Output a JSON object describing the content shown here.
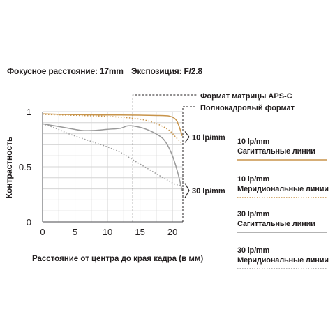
{
  "header": {
    "focal_length": "Фокусное расстояние: 17mm",
    "aperture": "Экспозиция: F/2.8"
  },
  "sensor_labels": {
    "aps_c": "Формат матрицы APS-C",
    "full_frame": "Полнокадровый формат"
  },
  "legend": [
    {
      "freq": "10 lp/mm",
      "type": "Сагиттальные линии",
      "color": "#c8944a",
      "style": "solid"
    },
    {
      "freq": "10 lp/mm",
      "type": "Меридиональные линии",
      "color": "#c8944a",
      "style": "dotted"
    },
    {
      "freq": "30 lp/mm",
      "type": "Сагиттальные линии",
      "color": "#9a9a9a",
      "style": "solid"
    },
    {
      "freq": "30 lp/mm",
      "type": "Меридиональные линии",
      "color": "#9a9a9a",
      "style": "dotted"
    }
  ],
  "chart_data": {
    "type": "line",
    "xlabel": "Расстояние от центра до края кадра (в мм)",
    "ylabel": "Контрастность",
    "xlim": [
      0,
      21.6
    ],
    "ylim": [
      0,
      1
    ],
    "x_ticks": [
      "0",
      "5",
      "10",
      "15",
      "20"
    ],
    "y_ticks": [
      "0",
      "0.5",
      "1"
    ],
    "grid": true,
    "markers": [
      {
        "label": "Формат матрицы APS-C",
        "x": 13.9
      },
      {
        "label": "Полнокадровый формат",
        "x": 21.6
      }
    ],
    "group_labels": [
      {
        "text": "10 lp/mm",
        "y_range": [
          0.72,
          0.82
        ]
      },
      {
        "text": "30 lp/mm",
        "y_range": [
          0.22,
          0.35
        ]
      }
    ],
    "series": [
      {
        "name": "10 lp/mm Сагиттальные линии",
        "color": "#c8944a",
        "dash": "solid",
        "points": [
          [
            0,
            0.98
          ],
          [
            3,
            0.975
          ],
          [
            6,
            0.972
          ],
          [
            9,
            0.97
          ],
          [
            12,
            0.97
          ],
          [
            15,
            0.968
          ],
          [
            18,
            0.965
          ],
          [
            19.5,
            0.96
          ],
          [
            20.5,
            0.93
          ],
          [
            21,
            0.87
          ],
          [
            21.5,
            0.78
          ]
        ]
      },
      {
        "name": "10 lp/mm Меридиональные линии",
        "color": "#c8944a",
        "dash": "dotted",
        "points": [
          [
            0,
            0.975
          ],
          [
            3,
            0.97
          ],
          [
            6,
            0.965
          ],
          [
            9,
            0.96
          ],
          [
            12,
            0.95
          ],
          [
            14,
            0.94
          ],
          [
            16,
            0.92
          ],
          [
            18,
            0.88
          ],
          [
            19.5,
            0.83
          ],
          [
            20.5,
            0.77
          ],
          [
            21.5,
            0.71
          ]
        ]
      },
      {
        "name": "30 lp/mm Сагиттальные линии",
        "color": "#9a9a9a",
        "dash": "solid",
        "points": [
          [
            0,
            0.89
          ],
          [
            2,
            0.87
          ],
          [
            4,
            0.85
          ],
          [
            6,
            0.83
          ],
          [
            8,
            0.83
          ],
          [
            10,
            0.84
          ],
          [
            12,
            0.85
          ],
          [
            13,
            0.87
          ],
          [
            14,
            0.87
          ],
          [
            16,
            0.84
          ],
          [
            18,
            0.78
          ],
          [
            19,
            0.72
          ],
          [
            20,
            0.6
          ],
          [
            20.8,
            0.45
          ],
          [
            21.5,
            0.28
          ]
        ]
      },
      {
        "name": "30 lp/mm Меридиональные линии",
        "color": "#9a9a9a",
        "dash": "dotted",
        "points": [
          [
            0,
            0.89
          ],
          [
            2,
            0.85
          ],
          [
            4,
            0.8
          ],
          [
            6,
            0.76
          ],
          [
            8,
            0.72
          ],
          [
            10,
            0.68
          ],
          [
            12,
            0.63
          ],
          [
            14,
            0.56
          ],
          [
            16,
            0.49
          ],
          [
            18,
            0.42
          ],
          [
            19.5,
            0.37
          ],
          [
            20.5,
            0.34
          ],
          [
            21.5,
            0.33
          ]
        ]
      }
    ]
  }
}
